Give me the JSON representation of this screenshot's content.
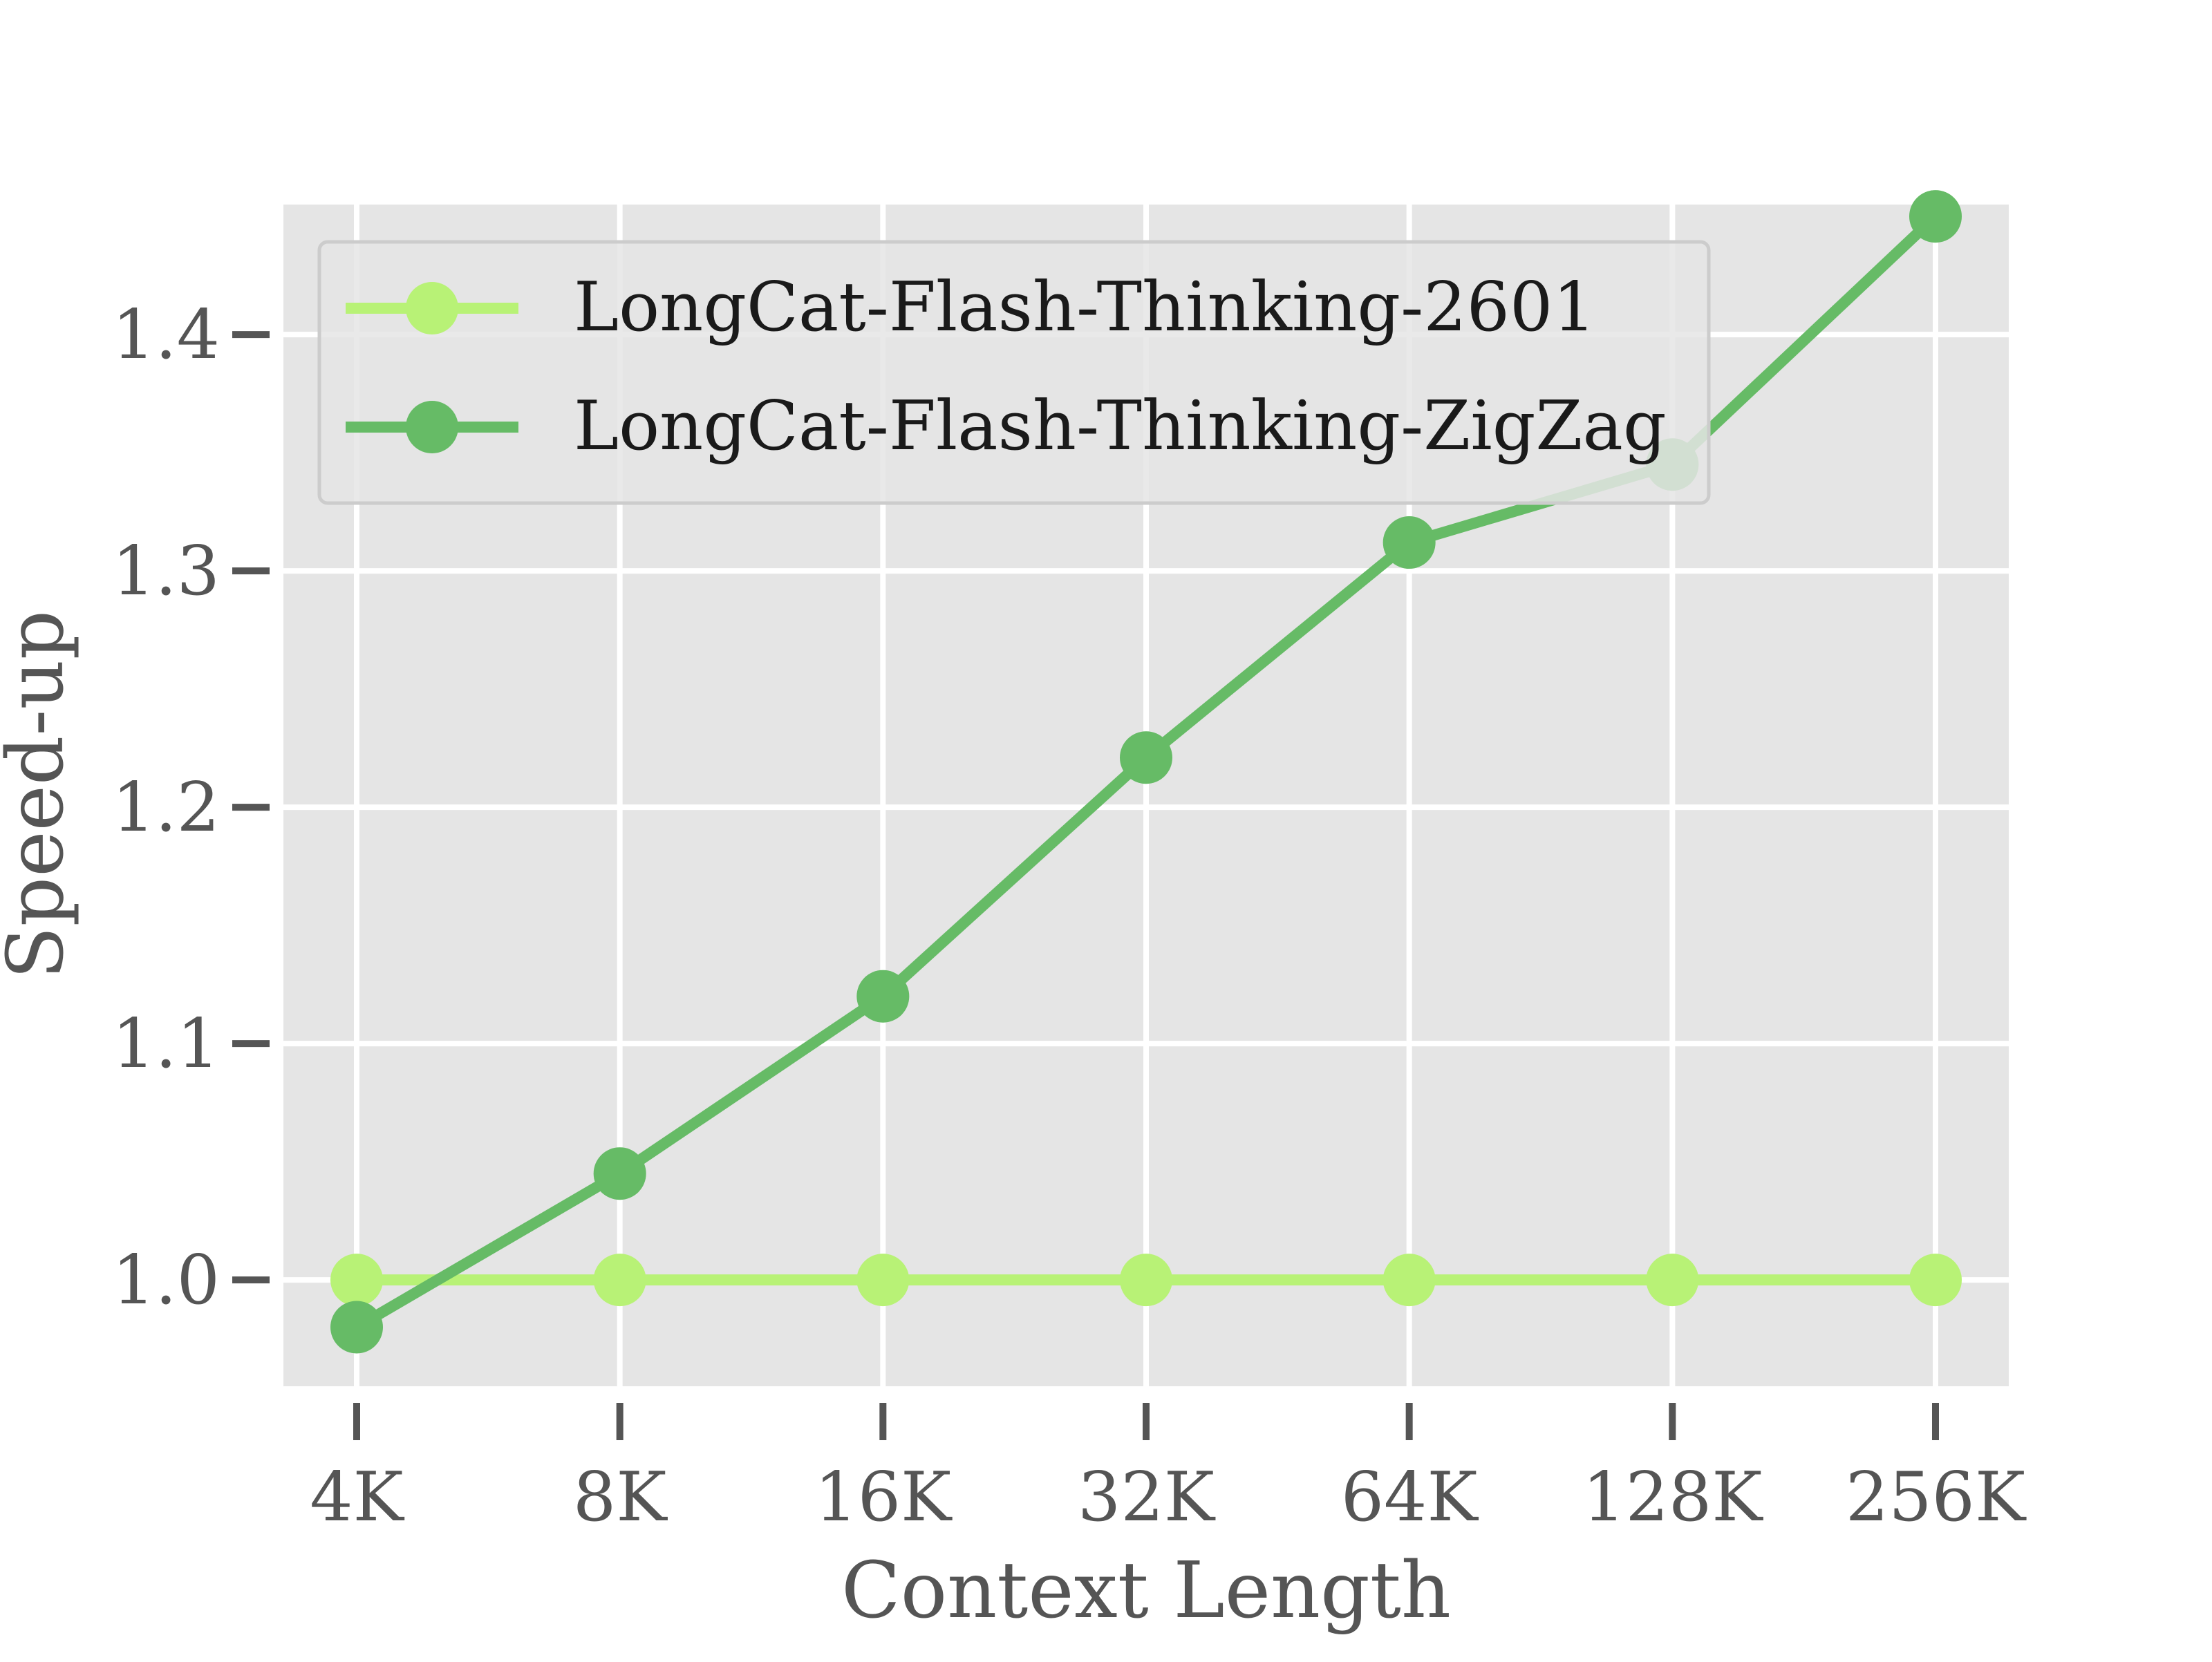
{
  "chart_data": {
    "type": "line",
    "title": "",
    "xlabel": "Context Length",
    "ylabel": "Speed-up",
    "categories": [
      "4K",
      "8K",
      "16K",
      "32K",
      "64K",
      "128K",
      "256K"
    ],
    "ylim": [
      0.955,
      1.455
    ],
    "yticks": [
      "1.0",
      "1.1",
      "1.2",
      "1.3",
      "1.4"
    ],
    "grid": true,
    "legend_position": "top-left",
    "series": [
      {
        "name": "LongCat-Flash-Thinking-2601",
        "color": "#b8f276",
        "values": [
          1.0,
          1.0,
          1.0,
          1.0,
          1.0,
          1.0,
          1.0
        ]
      },
      {
        "name": "LongCat-Flash-Thinking-ZigZag",
        "color": "#66bb66",
        "values": [
          0.98,
          1.045,
          1.12,
          1.221,
          1.312,
          1.345,
          1.45
        ]
      }
    ],
    "colors": {
      "plot_background": "#e5e5e5",
      "grid": "#ffffff",
      "text": "#555555"
    }
  }
}
